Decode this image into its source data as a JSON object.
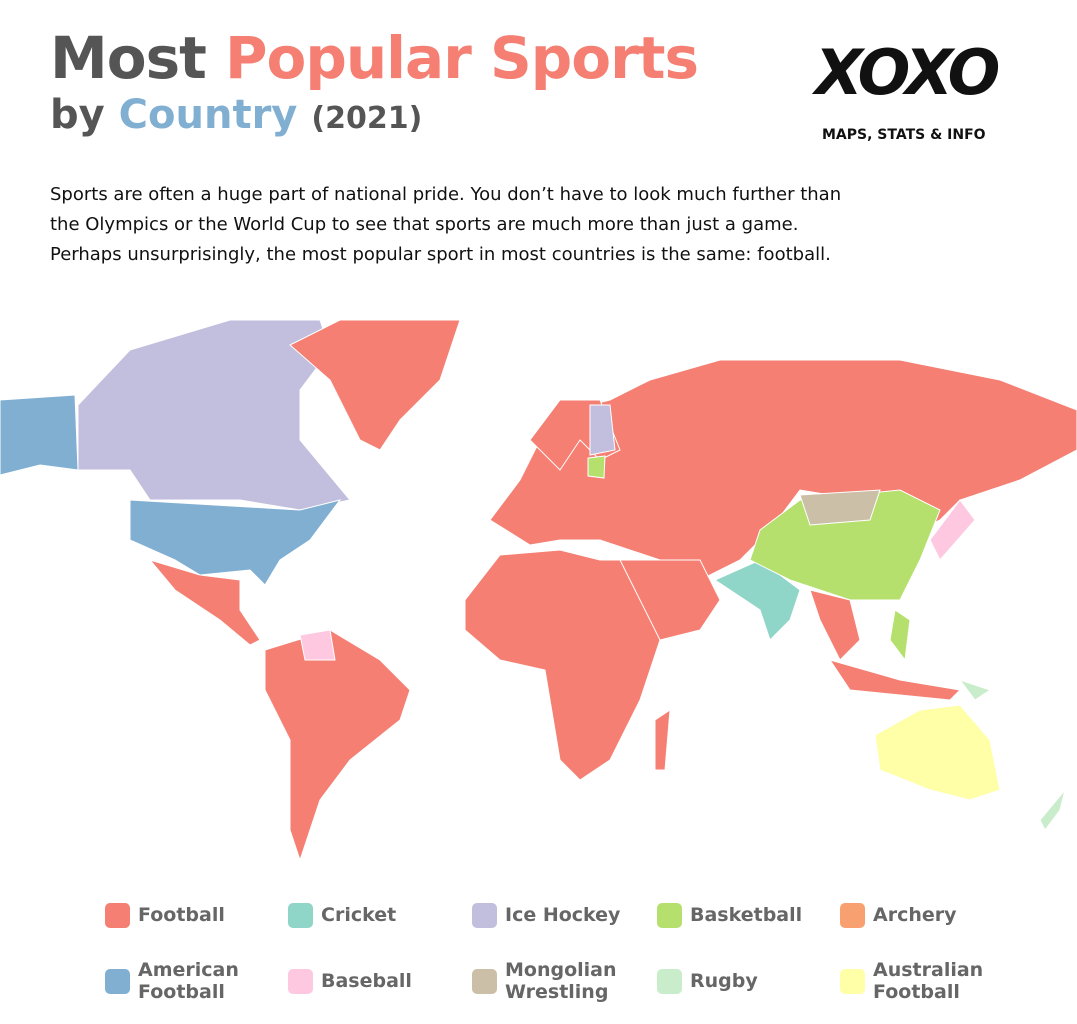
{
  "header": {
    "title_parts": [
      "Most",
      "Popular Sports",
      "by",
      "Country",
      "(2021)"
    ],
    "logo": "XOXO",
    "logo_tagline": "MAPS, STATS & INFO",
    "description_lines": [
      "Sports are often a huge part of national pride. You don’t have to look much further than",
      "the Olympics or the World Cup to see that sports are much more than just a game.",
      "Perhaps unsurprisingly, the most popular sport in most countries is the same: football."
    ]
  },
  "legend": [
    {
      "label": "Football",
      "color": "#f47f72"
    },
    {
      "label": "Cricket",
      "color": "#8fd5c8"
    },
    {
      "label": "Ice Hockey",
      "color": "#c2bedd"
    },
    {
      "label": "Basketball",
      "color": "#b5e06e"
    },
    {
      "label": "Archery",
      "color": "#f9a070"
    },
    {
      "label": "American Football",
      "color": "#80afd2"
    },
    {
      "label": "Baseball",
      "color": "#fdc8e0"
    },
    {
      "label": "Mongolian Wrestling",
      "color": "#cbbfa8"
    },
    {
      "label": "Rugby",
      "color": "#c9ecca"
    },
    {
      "label": "Australian Football",
      "color": "#feffa6"
    }
  ]
}
